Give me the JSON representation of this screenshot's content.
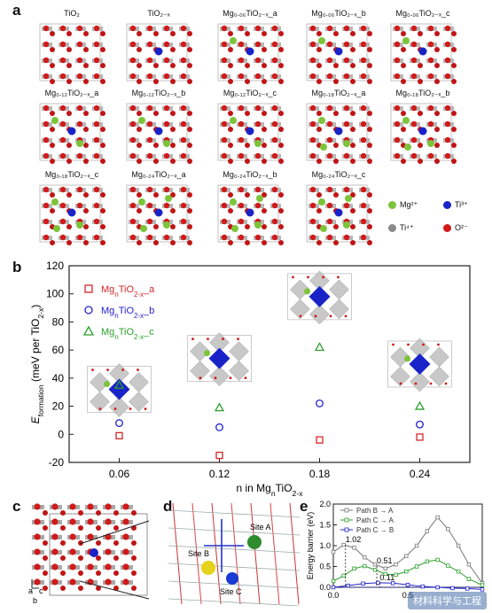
{
  "panel_letters": [
    "a",
    "b",
    "c",
    "d",
    "e"
  ],
  "panel_a": {
    "structures": [
      {
        "label": "TiO₂"
      },
      {
        "label": "TiO₂₋ₓ"
      },
      {
        "label": "Mg₀.₀₆TiO₂₋ₓ_a"
      },
      {
        "label": "Mg₀.₀₆TiO₂₋ₓ_b"
      },
      {
        "label": "Mg₀.₀₆TiO₂₋ₓ_c"
      },
      {
        "label": "Mg₀.₁₂TiO₂₋ₓ_a"
      },
      {
        "label": "Mg₀.₁₂TiO₂₋ₓ_b"
      },
      {
        "label": "Mg₀.₁₂TiO₂₋ₓ_c"
      },
      {
        "label": "Mg₀.₁₈TiO₂₋ₓ_a"
      },
      {
        "label": "Mg₀.₁₈TiO₂₋ₓ_b"
      },
      {
        "label": "Mg₀.₁₈TiO₂₋ₓ_c"
      },
      {
        "label": "Mg₀.₂₄TiO₂₋ₓ_a"
      },
      {
        "label": "Mg₀.₂₄TiO₂₋ₓ_b"
      },
      {
        "label": "Mg₀.₂₄TiO₂₋ₓ_c"
      }
    ],
    "legend": [
      {
        "label": "Mg²⁺",
        "color": "#7cc43a"
      },
      {
        "label": "Ti³⁺",
        "color": "#1a23c8"
      },
      {
        "label": "Ti⁴⁺",
        "color": "#8a8a8a"
      },
      {
        "label": "O²⁻",
        "color": "#d11a1a"
      }
    ]
  },
  "panel_d": {
    "sites": [
      "Site A",
      "Site B",
      "Site C"
    ]
  },
  "chart_data": [
    {
      "type": "scatter",
      "panel": "b",
      "ylabel": "E_formation (meV per TiO2-x)",
      "ylabel_main": "E",
      "ylabel_sub": "formation",
      "ylabel_rest": " (meV per TiO",
      "ylabel_sub2": "2-x",
      "ylabel_end": ")",
      "xlabel": "n in MgnTiO2-x",
      "xlabel_parts": [
        "n in Mg",
        "n",
        "TiO",
        "2-x"
      ],
      "x_ticks": [
        "0.06",
        "0.12",
        "0.18",
        "0.24"
      ],
      "x": [
        0.06,
        0.12,
        0.18,
        0.24
      ],
      "xlim": [
        0.03,
        0.27
      ],
      "ylim": [
        -20,
        120
      ],
      "y_ticks": [
        -20,
        0,
        20,
        40,
        60,
        80,
        100,
        120
      ],
      "legend_position": "top-left",
      "series": [
        {
          "name": "MgnTiO2-x_a",
          "name_parts": [
            "Mg",
            "n",
            "TiO",
            "2-x",
            "_a"
          ],
          "marker": "square",
          "color": "#d62728",
          "values": [
            -1,
            -15,
            -4,
            -2
          ]
        },
        {
          "name": "MgnTiO2-x_b",
          "name_parts": [
            "Mg",
            "n",
            "TiO",
            "2-x",
            "_b"
          ],
          "marker": "circle",
          "color": "#2222cc",
          "values": [
            8,
            5,
            22,
            7
          ]
        },
        {
          "name": "MgnTiO2-x_c",
          "name_parts": [
            "Mg",
            "n",
            "TiO",
            "2-x",
            "_c"
          ],
          "marker": "triangle",
          "color": "#2ca02c",
          "values": [
            35,
            19,
            62,
            20
          ]
        }
      ]
    },
    {
      "type": "line",
      "panel": "e",
      "ylabel": "Energy barrier (eV)",
      "ylim": [
        0.0,
        2.0
      ],
      "y_ticks": [
        "0.0",
        "0.5",
        "1.0",
        "1.5",
        "2.0"
      ],
      "xlim": [
        0.0,
        1.0
      ],
      "x_ticks": [
        "0.0",
        "0.5"
      ],
      "legend_position": "top-left",
      "annotations": [
        "1.02",
        "0.51",
        "0.11"
      ],
      "series": [
        {
          "name": "Path B → A",
          "color": "#777777",
          "x": [
            0,
            0.07,
            0.14,
            0.21,
            0.28,
            0.35,
            0.42,
            0.49,
            0.56,
            0.63,
            0.7,
            0.77,
            0.84,
            0.91,
            1.0
          ],
          "values": [
            0.85,
            1.02,
            0.95,
            0.72,
            0.55,
            0.45,
            0.55,
            0.75,
            1.0,
            1.35,
            1.68,
            1.4,
            1.0,
            0.55,
            0.1
          ]
        },
        {
          "name": "Path C → A",
          "color": "#2ca02c",
          "x": [
            0,
            0.07,
            0.14,
            0.21,
            0.28,
            0.35,
            0.42,
            0.49,
            0.56,
            0.63,
            0.7,
            0.77,
            0.84,
            0.91,
            1.0
          ],
          "values": [
            0.15,
            0.28,
            0.45,
            0.51,
            0.42,
            0.32,
            0.3,
            0.38,
            0.5,
            0.62,
            0.66,
            0.52,
            0.38,
            0.2,
            0.05
          ]
        },
        {
          "name": "Path C → B",
          "color": "#2222cc",
          "x": [
            0,
            0.1,
            0.2,
            0.3,
            0.4,
            0.5,
            0.6,
            0.7,
            0.8,
            0.9,
            1.0
          ],
          "values": [
            0.0,
            0.04,
            0.09,
            0.11,
            0.1,
            0.06,
            0.02,
            0.0,
            -0.02,
            -0.03,
            -0.05
          ]
        }
      ]
    }
  ],
  "watermark": "材料科学与工程"
}
